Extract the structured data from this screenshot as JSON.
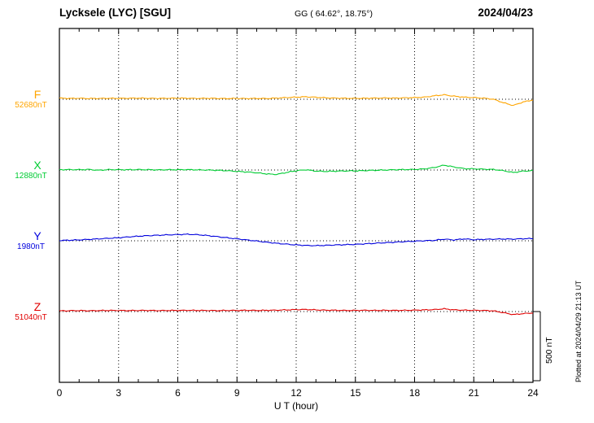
{
  "header": {
    "station": "Lycksele (LYC)  [SGU]",
    "coords": "GG ( 64.62°,  18.75°)",
    "date": "2024/04/23"
  },
  "footer": {
    "plotted_at": "Plotted at 2024/04/29 21:13 UT"
  },
  "scale_bar": {
    "label": "500 nT",
    "span_nT": 500
  },
  "chart_data": {
    "type": "line",
    "title": "Lycksele (LYC) [SGU] magnetogram",
    "date": "2024/04/23",
    "x_label": "U T (hour)",
    "x_range": [
      0,
      24
    ],
    "x_ticks": [
      0,
      3,
      6,
      9,
      12,
      15,
      18,
      21,
      24
    ],
    "x_step_hours": 0.5,
    "scale_bar_nT": 500,
    "series": [
      {
        "name": "F",
        "color": "#FFA500",
        "baseline_label": "52680nT",
        "baseline_nT": 52680,
        "offsets_nT": [
          8,
          6,
          7,
          5,
          6,
          7,
          6,
          7,
          8,
          7,
          6,
          7,
          8,
          7,
          6,
          7,
          6,
          5,
          6,
          5,
          6,
          5,
          8,
          12,
          15,
          18,
          14,
          10,
          8,
          7,
          6,
          7,
          8,
          9,
          8,
          10,
          12,
          15,
          25,
          32,
          22,
          15,
          12,
          8,
          0,
          -25,
          -45,
          -20,
          -5
        ]
      },
      {
        "name": "X",
        "color": "#00CC33",
        "baseline_label": "12880nT",
        "baseline_nT": 12880,
        "offsets_nT": [
          2,
          3,
          2,
          4,
          -2,
          3,
          2,
          2,
          3,
          2,
          1,
          2,
          2,
          3,
          1,
          0,
          -2,
          -5,
          -10,
          -14,
          -20,
          -28,
          -32,
          -18,
          -5,
          2,
          -8,
          -10,
          -8,
          -7,
          -6,
          -4,
          -2,
          0,
          2,
          3,
          4,
          8,
          18,
          35,
          22,
          10,
          8,
          6,
          4,
          -5,
          -18,
          -8,
          -4
        ]
      },
      {
        "name": "Y",
        "color": "#0000DD",
        "baseline_label": "1980nT",
        "baseline_nT": 1980,
        "offsets_nT": [
          2,
          4,
          6,
          10,
          14,
          18,
          22,
          28,
          33,
          37,
          40,
          43,
          45,
          47,
          44,
          38,
          30,
          22,
          14,
          6,
          -2,
          -10,
          -18,
          -24,
          -30,
          -34,
          -35,
          -33,
          -30,
          -28,
          -26,
          -22,
          -18,
          -14,
          -10,
          -6,
          -3,
          0,
          3,
          12,
          6,
          14,
          8,
          10,
          12,
          13,
          12,
          15,
          16
        ]
      },
      {
        "name": "Z",
        "color": "#E00000",
        "baseline_label": "51040nT",
        "baseline_nT": 51040,
        "offsets_nT": [
          5,
          6,
          7,
          6,
          7,
          8,
          8,
          7,
          8,
          8,
          7,
          8,
          8,
          9,
          8,
          8,
          7,
          8,
          8,
          9,
          8,
          9,
          10,
          12,
          14,
          15,
          12,
          10,
          9,
          8,
          8,
          9,
          8,
          9,
          8,
          9,
          10,
          12,
          14,
          20,
          12,
          10,
          9,
          8,
          5,
          -8,
          -22,
          -15,
          -10
        ]
      }
    ]
  }
}
